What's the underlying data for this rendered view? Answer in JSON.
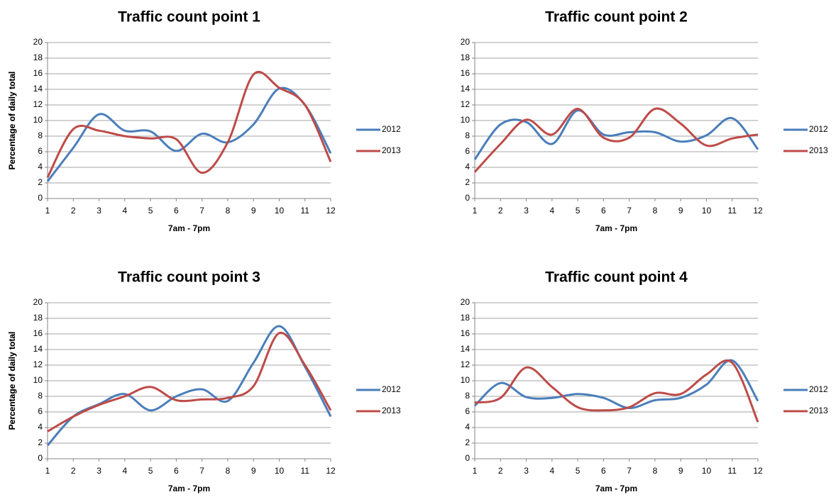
{
  "chart_data": [
    {
      "type": "line",
      "title": "Traffic count point 1",
      "x_label": "7am - 7pm",
      "y_label": "Percentage of daily total",
      "x": [
        1,
        2,
        3,
        4,
        5,
        6,
        7,
        8,
        9,
        10,
        11,
        12
      ],
      "xlim": [
        1,
        12
      ],
      "xticks": [
        1,
        2,
        3,
        4,
        5,
        6,
        7,
        8,
        9,
        10,
        11,
        12
      ],
      "ylim": [
        0,
        20
      ],
      "yticks": [
        0,
        2,
        4,
        6,
        8,
        10,
        12,
        14,
        16,
        18,
        20
      ],
      "grid": true,
      "legend": "right",
      "series": [
        {
          "name": "2012",
          "color": "#4a7ebb",
          "values": [
            2.2,
            6.5,
            10.8,
            8.7,
            8.6,
            6.1,
            8.3,
            7.2,
            9.5,
            14.1,
            12.0,
            5.8
          ]
        },
        {
          "name": "2013",
          "color": "#be4b48",
          "values": [
            2.7,
            8.9,
            8.7,
            8.0,
            7.7,
            7.6,
            3.3,
            7.2,
            15.9,
            14.2,
            12.0,
            4.7
          ]
        }
      ]
    },
    {
      "type": "line",
      "title": "Traffic count point 2",
      "x_label": "7am - 7pm",
      "y_label": "Percentage of daily total",
      "x": [
        1,
        2,
        3,
        4,
        5,
        6,
        7,
        8,
        9,
        10,
        11,
        12
      ],
      "xlim": [
        1,
        12
      ],
      "xticks": [
        1,
        2,
        3,
        4,
        5,
        6,
        7,
        8,
        9,
        10,
        11,
        12
      ],
      "ylim": [
        0,
        20
      ],
      "yticks": [
        0,
        2,
        4,
        6,
        8,
        10,
        12,
        14,
        16,
        18,
        20
      ],
      "grid": true,
      "legend": "right",
      "series": [
        {
          "name": "2012",
          "color": "#4a7ebb",
          "values": [
            5.0,
            9.5,
            9.8,
            7.0,
            11.3,
            8.2,
            8.5,
            8.5,
            7.3,
            8.1,
            10.3,
            6.3
          ]
        },
        {
          "name": "2013",
          "color": "#be4b48",
          "values": [
            3.4,
            7.0,
            10.1,
            8.2,
            11.5,
            7.8,
            7.8,
            11.5,
            9.6,
            6.8,
            7.7,
            8.2
          ]
        }
      ]
    },
    {
      "type": "line",
      "title": "Traffic count point 3",
      "x_label": "7am - 7pm",
      "y_label": "Percentage of daily total",
      "x": [
        1,
        2,
        3,
        4,
        5,
        6,
        7,
        8,
        9,
        10,
        11,
        12
      ],
      "xlim": [
        1,
        12
      ],
      "xticks": [
        1,
        2,
        3,
        4,
        5,
        6,
        7,
        8,
        9,
        10,
        11,
        12
      ],
      "ylim": [
        0,
        20
      ],
      "yticks": [
        0,
        2,
        4,
        6,
        8,
        10,
        12,
        14,
        16,
        18,
        20
      ],
      "grid": true,
      "legend": "right",
      "series": [
        {
          "name": "2012",
          "color": "#4a7ebb",
          "values": [
            1.7,
            5.4,
            7.0,
            8.3,
            6.2,
            8.0,
            8.9,
            7.4,
            12.3,
            17.0,
            11.8,
            5.4
          ]
        },
        {
          "name": "2013",
          "color": "#be4b48",
          "values": [
            3.5,
            5.4,
            6.9,
            8.0,
            9.2,
            7.5,
            7.6,
            7.8,
            9.3,
            16.1,
            12.0,
            6.2
          ]
        }
      ]
    },
    {
      "type": "line",
      "title": "Traffic count point 4",
      "x_label": "7am - 7pm",
      "y_label": "Percentage of daily total",
      "x": [
        1,
        2,
        3,
        4,
        5,
        6,
        7,
        8,
        9,
        10,
        11,
        12
      ],
      "xlim": [
        1,
        12
      ],
      "xticks": [
        1,
        2,
        3,
        4,
        5,
        6,
        7,
        8,
        9,
        10,
        11,
        12
      ],
      "ylim": [
        0,
        20
      ],
      "yticks": [
        0,
        2,
        4,
        6,
        8,
        10,
        12,
        14,
        16,
        18,
        20
      ],
      "grid": true,
      "legend": "right",
      "series": [
        {
          "name": "2012",
          "color": "#4a7ebb",
          "values": [
            6.8,
            9.7,
            7.9,
            7.8,
            8.3,
            7.8,
            6.5,
            7.5,
            7.8,
            9.5,
            12.6,
            7.4
          ]
        },
        {
          "name": "2013",
          "color": "#be4b48",
          "values": [
            7.2,
            7.8,
            11.7,
            9.2,
            6.6,
            6.2,
            6.6,
            8.4,
            8.3,
            10.8,
            12.3,
            4.7
          ]
        }
      ]
    }
  ]
}
